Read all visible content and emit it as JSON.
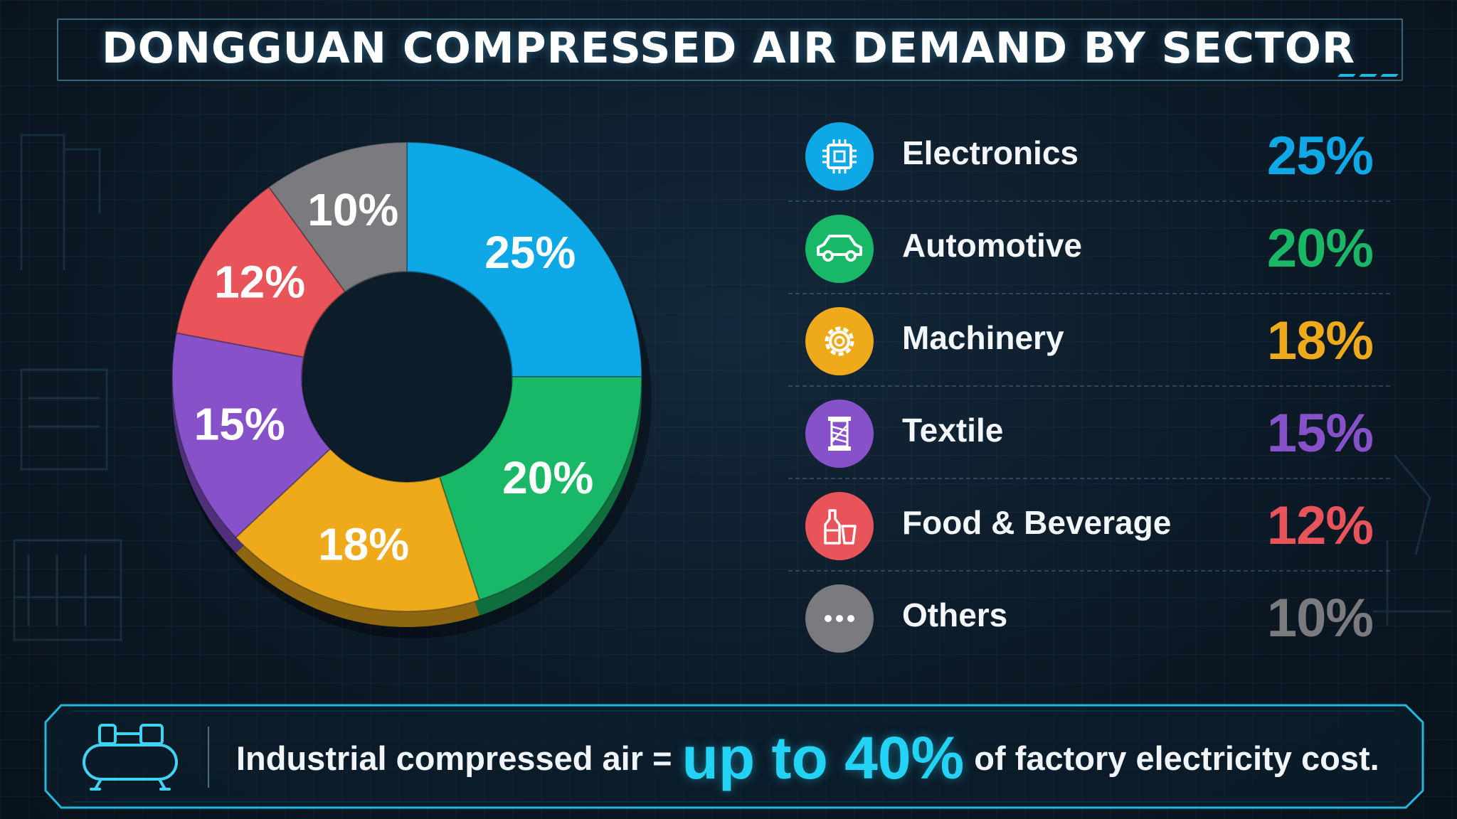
{
  "header": {
    "title": "DONGGUAN COMPRESSED AIR DEMAND BY SECTOR"
  },
  "chart_data": {
    "type": "pie",
    "style": "donut",
    "title": "DONGGUAN COMPRESSED AIR DEMAND BY SECTOR",
    "categories": [
      "Electronics",
      "Automotive",
      "Machinery",
      "Textile",
      "Food & Beverage",
      "Others"
    ],
    "values": [
      25,
      20,
      18,
      15,
      12,
      10
    ],
    "data_labels": [
      "25%",
      "20%",
      "18%",
      "15%",
      "12%",
      "10%"
    ],
    "colors": [
      "#0ea8e6",
      "#19b866",
      "#eeaa1a",
      "#8651c9",
      "#e8545a",
      "#7b7b7f"
    ],
    "legend_placement": "right"
  },
  "legend": {
    "items": [
      {
        "label": "Electronics",
        "value": "25%",
        "icon": "chip-icon",
        "color": "#0ea8e6"
      },
      {
        "label": "Automotive",
        "value": "20%",
        "icon": "car-icon",
        "color": "#19b866"
      },
      {
        "label": "Machinery",
        "value": "18%",
        "icon": "gear-icon",
        "color": "#eeaa1a"
      },
      {
        "label": "Textile",
        "value": "15%",
        "icon": "thread-spool-icon",
        "color": "#8651c9"
      },
      {
        "label": "Food & Beverage",
        "value": "12%",
        "icon": "bottle-cup-icon",
        "color": "#e8545a"
      },
      {
        "label": "Others",
        "value": "10%",
        "icon": "more-dots-icon",
        "color": "#7b7b7f"
      }
    ]
  },
  "banner": {
    "icon": "air-compressor-icon",
    "text_before": "Industrial compressed air =",
    "highlight": "up to 40%",
    "text_after": "of factory electricity cost.",
    "highlight_color": "#22d3f5"
  }
}
